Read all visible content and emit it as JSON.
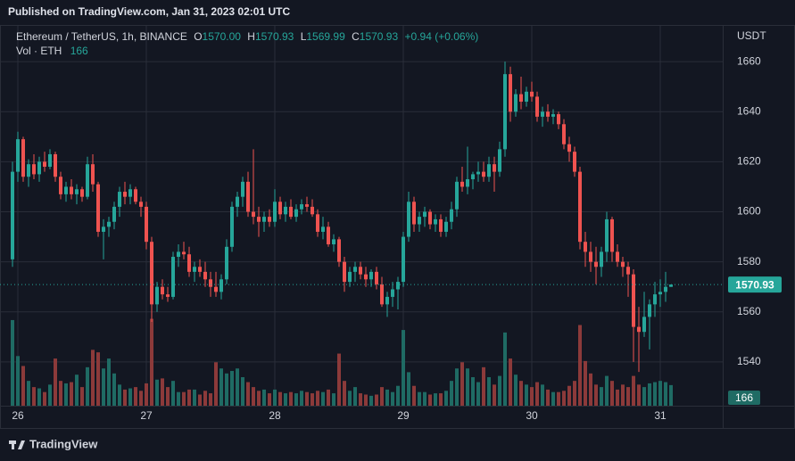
{
  "header": "Published on TradingView.com, Jan 31, 2023 02:01 UTC",
  "footer": "TradingView",
  "chart_data": {
    "type": "candlestick",
    "symbol": "Ethereum / TetherUS, 1h, BINANCE",
    "legend": {
      "o_key": "O",
      "o": "1570.00",
      "h_key": "H",
      "h": "1570.93",
      "l_key": "L",
      "l": "1569.99",
      "c_key": "C",
      "c": "1570.93",
      "change": "+0.94 (+0.06%)"
    },
    "volume_label": "Vol · ETH",
    "currency": "USDT",
    "up_color": "#26a69a",
    "down_color": "#ef5350",
    "volume_up_color": "#1f6b64",
    "volume_down_color": "#8c3a3a",
    "categories": [
      null,
      "26",
      null,
      null,
      null,
      null,
      null,
      null,
      null,
      null,
      null,
      null,
      null,
      null,
      null,
      null,
      null,
      null,
      null,
      null,
      null,
      null,
      null,
      null,
      null,
      "27",
      null,
      null,
      null,
      null,
      null,
      null,
      null,
      null,
      null,
      null,
      null,
      null,
      null,
      null,
      null,
      null,
      null,
      null,
      null,
      null,
      null,
      null,
      null,
      "28",
      null,
      null,
      null,
      null,
      null,
      null,
      null,
      null,
      null,
      null,
      null,
      null,
      null,
      null,
      null,
      null,
      null,
      null,
      null,
      null,
      null,
      null,
      null,
      "29",
      null,
      null,
      null,
      null,
      null,
      null,
      null,
      null,
      null,
      null,
      null,
      null,
      null,
      null,
      null,
      null,
      null,
      null,
      null,
      null,
      null,
      null,
      null,
      "30",
      null,
      null,
      null,
      null,
      null,
      null,
      null,
      null,
      null,
      null,
      null,
      null,
      null,
      null,
      null,
      null,
      null,
      null,
      null,
      null,
      null,
      null,
      null,
      "31",
      null,
      null
    ],
    "open": [
      1581,
      1616,
      1629,
      1614,
      1619,
      1615,
      1620,
      1618,
      1623,
      1614,
      1607,
      1610,
      1607,
      1609,
      1606,
      1619,
      1611,
      1592,
      1594,
      1596,
      1602,
      1608,
      1606,
      1609,
      1604,
      1602,
      1588,
      1563,
      1570,
      1567,
      1566,
      1582,
      1584,
      1583,
      1576,
      1578,
      1576,
      1573,
      1570,
      1568,
      1573,
      1586,
      1602,
      1606,
      1612,
      1600,
      1598,
      1596,
      1598,
      1596,
      1604,
      1599,
      1602,
      1598,
      1601,
      1603,
      1602,
      1599,
      1592,
      1594,
      1587,
      1589,
      1580,
      1572,
      1576,
      1578,
      1575,
      1573,
      1576,
      1571,
      1563,
      1566,
      1569,
      1572,
      1590,
      1604,
      1595,
      1598,
      1600,
      1595,
      1597,
      1592,
      1596,
      1601,
      1612,
      1610,
      1613,
      1615,
      1616,
      1614,
      1619,
      1616,
      1625,
      1655,
      1640,
      1647,
      1644,
      1648,
      1646,
      1638,
      1640,
      1638,
      1639,
      1635,
      1627,
      1624,
      1616,
      1588,
      1584,
      1580,
      1578,
      1584,
      1597,
      1584,
      1580,
      1578,
      1575,
      1554,
      1552,
      1558,
      1563,
      1567,
      1568,
      1570
    ],
    "high": [
      1620,
      1632,
      1630,
      1621,
      1623,
      1622,
      1624,
      1625,
      1624,
      1616,
      1612,
      1613,
      1611,
      1610,
      1622,
      1623,
      1612,
      1597,
      1598,
      1604,
      1610,
      1612,
      1611,
      1610,
      1606,
      1604,
      1590,
      1572,
      1573,
      1570,
      1584,
      1587,
      1588,
      1586,
      1580,
      1581,
      1580,
      1576,
      1576,
      1575,
      1589,
      1604,
      1608,
      1614,
      1616,
      1625,
      1602,
      1600,
      1601,
      1609,
      1606,
      1604,
      1605,
      1603,
      1605,
      1606,
      1605,
      1601,
      1598,
      1596,
      1591,
      1590,
      1582,
      1578,
      1580,
      1580,
      1578,
      1577,
      1578,
      1574,
      1568,
      1572,
      1574,
      1592,
      1608,
      1606,
      1600,
      1602,
      1601,
      1599,
      1599,
      1598,
      1604,
      1614,
      1618,
      1626,
      1616,
      1620,
      1620,
      1622,
      1622,
      1628,
      1660,
      1658,
      1649,
      1654,
      1650,
      1652,
      1648,
      1642,
      1643,
      1641,
      1640,
      1637,
      1630,
      1626,
      1618,
      1592,
      1588,
      1586,
      1586,
      1600,
      1598,
      1587,
      1582,
      1580,
      1577,
      1562,
      1568,
      1565,
      1572,
      1573,
      1576,
      1570.93
    ],
    "low": [
      1578,
      1612,
      1612,
      1610,
      1613,
      1612,
      1616,
      1617,
      1612,
      1605,
      1604,
      1605,
      1603,
      1604,
      1605,
      1608,
      1590,
      1581,
      1590,
      1593,
      1598,
      1603,
      1603,
      1603,
      1598,
      1585,
      1556,
      1560,
      1565,
      1564,
      1565,
      1578,
      1581,
      1574,
      1572,
      1574,
      1570,
      1566,
      1566,
      1565,
      1571,
      1584,
      1598,
      1602,
      1598,
      1595,
      1590,
      1592,
      1594,
      1594,
      1597,
      1596,
      1597,
      1596,
      1599,
      1600,
      1598,
      1590,
      1589,
      1586,
      1584,
      1578,
      1568,
      1570,
      1572,
      1573,
      1570,
      1570,
      1569,
      1562,
      1558,
      1562,
      1561,
      1570,
      1588,
      1592,
      1592,
      1594,
      1593,
      1592,
      1590,
      1590,
      1593,
      1598,
      1608,
      1607,
      1609,
      1612,
      1612,
      1612,
      1608,
      1614,
      1622,
      1636,
      1638,
      1641,
      1642,
      1644,
      1636,
      1634,
      1636,
      1635,
      1633,
      1625,
      1620,
      1614,
      1585,
      1578,
      1576,
      1571,
      1574,
      1580,
      1580,
      1578,
      1574,
      1566,
      1540,
      1536,
      1550,
      1545,
      1558,
      1562,
      1564,
      1569.99
    ],
    "close": [
      1616,
      1629,
      1614,
      1619,
      1615,
      1620,
      1618,
      1623,
      1614,
      1607,
      1610,
      1607,
      1609,
      1606,
      1619,
      1611,
      1592,
      1594,
      1596,
      1602,
      1608,
      1606,
      1609,
      1604,
      1602,
      1588,
      1563,
      1570,
      1567,
      1566,
      1582,
      1584,
      1583,
      1576,
      1578,
      1576,
      1573,
      1570,
      1568,
      1573,
      1586,
      1602,
      1606,
      1612,
      1600,
      1598,
      1596,
      1598,
      1596,
      1604,
      1599,
      1602,
      1598,
      1601,
      1603,
      1602,
      1599,
      1592,
      1594,
      1587,
      1589,
      1580,
      1572,
      1576,
      1578,
      1575,
      1573,
      1576,
      1571,
      1563,
      1566,
      1569,
      1572,
      1590,
      1604,
      1595,
      1598,
      1600,
      1595,
      1597,
      1592,
      1596,
      1601,
      1612,
      1610,
      1613,
      1615,
      1616,
      1614,
      1619,
      1616,
      1625,
      1655,
      1640,
      1647,
      1644,
      1648,
      1646,
      1638,
      1640,
      1638,
      1639,
      1635,
      1627,
      1624,
      1616,
      1588,
      1584,
      1580,
      1578,
      1584,
      1597,
      1584,
      1580,
      1578,
      1575,
      1554,
      1552,
      1558,
      1563,
      1567,
      1568,
      1570,
      1570.93
    ],
    "volume": [
      690,
      400,
      320,
      200,
      150,
      140,
      110,
      170,
      380,
      200,
      180,
      190,
      250,
      150,
      310,
      450,
      430,
      300,
      380,
      260,
      170,
      130,
      140,
      150,
      120,
      180,
      700,
      210,
      220,
      150,
      200,
      110,
      110,
      130,
      130,
      90,
      120,
      100,
      350,
      300,
      260,
      280,
      300,
      230,
      190,
      150,
      120,
      130,
      100,
      130,
      110,
      100,
      110,
      100,
      120,
      110,
      100,
      120,
      110,
      130,
      100,
      420,
      200,
      120,
      150,
      100,
      90,
      80,
      90,
      150,
      130,
      110,
      160,
      610,
      270,
      160,
      110,
      110,
      90,
      100,
      100,
      120,
      200,
      300,
      350,
      300,
      230,
      190,
      310,
      230,
      170,
      240,
      590,
      380,
      250,
      200,
      170,
      150,
      190,
      170,
      130,
      110,
      110,
      120,
      160,
      200,
      650,
      360,
      260,
      170,
      150,
      240,
      200,
      130,
      170,
      150,
      240,
      170,
      150,
      180,
      190,
      200,
      190,
      166
    ],
    "ylim": [
      1522.5,
      1674.3
    ],
    "yticks": [
      1540,
      1560,
      1580,
      1600,
      1620,
      1640,
      1660
    ],
    "vlim": [
      0,
      3060
    ],
    "grid": true
  }
}
